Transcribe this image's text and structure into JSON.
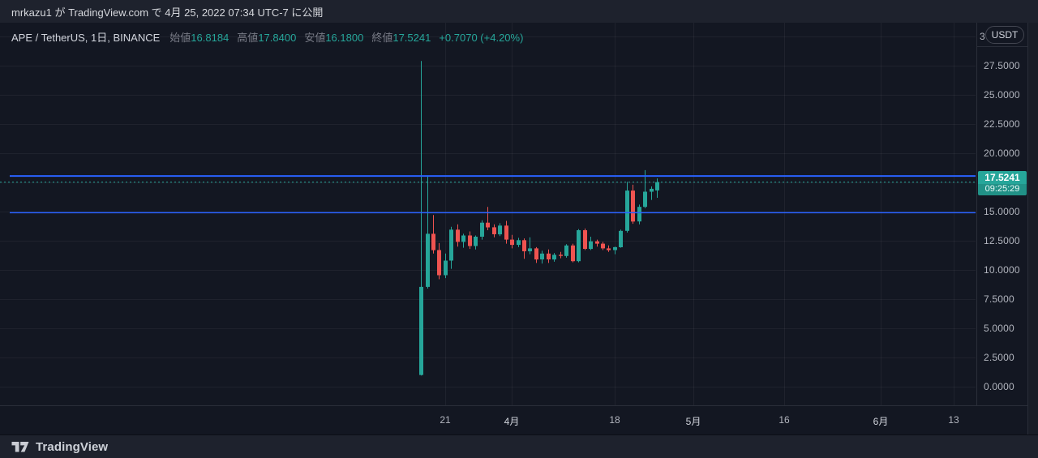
{
  "publish_bar": {
    "text": "mrkazu1 が TradingView.com で 4月 25, 2022 07:34 UTC-7 に公開"
  },
  "title_bar": {
    "symbol": "APE / TetherUS, 1日, BINANCE",
    "ohlc_fields": [
      {
        "label": "始値",
        "value": "16.8184"
      },
      {
        "label": "高値",
        "value": "17.8400"
      },
      {
        "label": "安値",
        "value": "16.1800"
      },
      {
        "label": "終値",
        "value": "17.5241"
      }
    ],
    "change": "+0.7070 (+4.20%)"
  },
  "price_axis": {
    "clipped_top_label": "3",
    "currency_button": "USDT",
    "tick_labels": [
      "27.5000",
      "25.0000",
      "22.5000",
      "20.0000",
      "15.0000",
      "12.5000",
      "10.0000",
      "7.5000",
      "5.0000",
      "2.5000",
      "0.0000"
    ],
    "price_tag": {
      "price": "17.5241",
      "countdown": "09:25:29"
    }
  },
  "time_axis": {
    "ticks": [
      {
        "label": "21",
        "day_index": 4,
        "is_month": false
      },
      {
        "label": "4月",
        "day_index": 15,
        "is_month": true
      },
      {
        "label": "18",
        "day_index": 32,
        "is_month": false
      },
      {
        "label": "5月",
        "day_index": 45,
        "is_month": true
      },
      {
        "label": "16",
        "day_index": 60,
        "is_month": false
      },
      {
        "label": "6月",
        "day_index": 76,
        "is_month": true
      },
      {
        "label": "13",
        "day_index": 88,
        "is_month": false
      }
    ]
  },
  "footer": {
    "brand": "TradingView"
  },
  "colors": {
    "background": "#131722",
    "panel": "#1e222d",
    "grid": "rgba(255,255,255,0.05)",
    "axis_border": "#2a2e39",
    "text_primary": "#d1d4dc",
    "text_secondary": "#b2b5be",
    "text_dim": "#787b86",
    "up": "#26a69a",
    "down": "#ef5350",
    "drawing_line": "#2962ff",
    "last_price_line": "#26a69a"
  },
  "chart_data": {
    "type": "candlestick",
    "title": "APE / TetherUS, 1日, BINANCE",
    "exchange": "BINANCE",
    "interval": "1日",
    "quote_currency": "USDT",
    "ylim": [
      0,
      30
    ],
    "y_tick_step": 2.5,
    "x_ticks": [
      "21",
      "4月",
      "18",
      "5月",
      "16",
      "6月",
      "13"
    ],
    "last_price": 17.5241,
    "last_price_countdown": "09:25:29",
    "last_price_line": {
      "price": 17.5241,
      "style": "dotted"
    },
    "horizontal_lines": [
      {
        "price": 18.05,
        "width": 2
      },
      {
        "price": 14.9,
        "width": 1.5
      }
    ],
    "ohlc": [
      {
        "date": "2022-03-17",
        "o": 1.0,
        "h": 27.9,
        "l": 0.95,
        "c": 8.55
      },
      {
        "date": "2022-03-18",
        "o": 8.55,
        "h": 18.1,
        "l": 8.4,
        "c": 13.1
      },
      {
        "date": "2022-03-19",
        "o": 13.1,
        "h": 14.7,
        "l": 11.4,
        "c": 11.7
      },
      {
        "date": "2022-03-20",
        "o": 11.7,
        "h": 12.3,
        "l": 9.2,
        "c": 9.55
      },
      {
        "date": "2022-03-21",
        "o": 9.55,
        "h": 11.4,
        "l": 9.3,
        "c": 10.8
      },
      {
        "date": "2022-03-22",
        "o": 10.8,
        "h": 13.7,
        "l": 10.1,
        "c": 13.45
      },
      {
        "date": "2022-03-23",
        "o": 13.45,
        "h": 13.9,
        "l": 12.0,
        "c": 12.4
      },
      {
        "date": "2022-03-24",
        "o": 12.4,
        "h": 13.1,
        "l": 11.9,
        "c": 12.95
      },
      {
        "date": "2022-03-25",
        "o": 12.95,
        "h": 13.3,
        "l": 11.8,
        "c": 12.05
      },
      {
        "date": "2022-03-26",
        "o": 12.05,
        "h": 12.95,
        "l": 11.75,
        "c": 12.85
      },
      {
        "date": "2022-03-27",
        "o": 12.85,
        "h": 14.25,
        "l": 12.6,
        "c": 14.05
      },
      {
        "date": "2022-03-28",
        "o": 14.05,
        "h": 15.4,
        "l": 13.4,
        "c": 13.65
      },
      {
        "date": "2022-03-29",
        "o": 13.65,
        "h": 13.9,
        "l": 12.8,
        "c": 13.05
      },
      {
        "date": "2022-03-30",
        "o": 13.05,
        "h": 14.0,
        "l": 12.9,
        "c": 13.8
      },
      {
        "date": "2022-03-31",
        "o": 13.8,
        "h": 14.2,
        "l": 12.25,
        "c": 12.6
      },
      {
        "date": "2022-04-01",
        "o": 12.6,
        "h": 13.0,
        "l": 11.85,
        "c": 12.15
      },
      {
        "date": "2022-04-02",
        "o": 12.15,
        "h": 12.75,
        "l": 11.95,
        "c": 12.55
      },
      {
        "date": "2022-04-03",
        "o": 12.55,
        "h": 12.7,
        "l": 10.95,
        "c": 11.6
      },
      {
        "date": "2022-04-04",
        "o": 11.6,
        "h": 12.8,
        "l": 11.35,
        "c": 11.85
      },
      {
        "date": "2022-04-05",
        "o": 11.85,
        "h": 11.95,
        "l": 10.6,
        "c": 10.9
      },
      {
        "date": "2022-04-06",
        "o": 10.9,
        "h": 11.65,
        "l": 10.55,
        "c": 11.4
      },
      {
        "date": "2022-04-07",
        "o": 11.4,
        "h": 11.75,
        "l": 10.6,
        "c": 10.9
      },
      {
        "date": "2022-04-08",
        "o": 10.9,
        "h": 11.45,
        "l": 10.7,
        "c": 11.3
      },
      {
        "date": "2022-04-09",
        "o": 11.3,
        "h": 11.55,
        "l": 11.0,
        "c": 11.2
      },
      {
        "date": "2022-04-10",
        "o": 11.2,
        "h": 12.2,
        "l": 11.05,
        "c": 12.1
      },
      {
        "date": "2022-04-11",
        "o": 12.1,
        "h": 12.25,
        "l": 10.65,
        "c": 10.75
      },
      {
        "date": "2022-04-12",
        "o": 10.75,
        "h": 13.5,
        "l": 10.65,
        "c": 13.4
      },
      {
        "date": "2022-04-13",
        "o": 13.4,
        "h": 13.55,
        "l": 11.7,
        "c": 11.8
      },
      {
        "date": "2022-04-14",
        "o": 11.8,
        "h": 12.85,
        "l": 11.7,
        "c": 12.45
      },
      {
        "date": "2022-04-15",
        "o": 12.45,
        "h": 12.6,
        "l": 12.0,
        "c": 12.25
      },
      {
        "date": "2022-04-16",
        "o": 12.25,
        "h": 12.4,
        "l": 11.7,
        "c": 11.85
      },
      {
        "date": "2022-04-17",
        "o": 11.85,
        "h": 12.1,
        "l": 11.55,
        "c": 11.7
      },
      {
        "date": "2022-04-18",
        "o": 11.7,
        "h": 12.0,
        "l": 11.35,
        "c": 11.95
      },
      {
        "date": "2022-04-19",
        "o": 11.95,
        "h": 13.45,
        "l": 11.9,
        "c": 13.35
      },
      {
        "date": "2022-04-20",
        "o": 13.35,
        "h": 17.55,
        "l": 13.2,
        "c": 16.8
      },
      {
        "date": "2022-04-21",
        "o": 16.8,
        "h": 17.3,
        "l": 13.95,
        "c": 14.15
      },
      {
        "date": "2022-04-22",
        "o": 14.15,
        "h": 15.6,
        "l": 13.9,
        "c": 15.4
      },
      {
        "date": "2022-04-23",
        "o": 15.4,
        "h": 18.55,
        "l": 15.3,
        "c": 16.7
      },
      {
        "date": "2022-04-24",
        "o": 16.7,
        "h": 17.15,
        "l": 16.0,
        "c": 16.95
      },
      {
        "date": "2022-04-25",
        "o": 16.8184,
        "h": 17.84,
        "l": 16.18,
        "c": 17.5241
      }
    ]
  }
}
